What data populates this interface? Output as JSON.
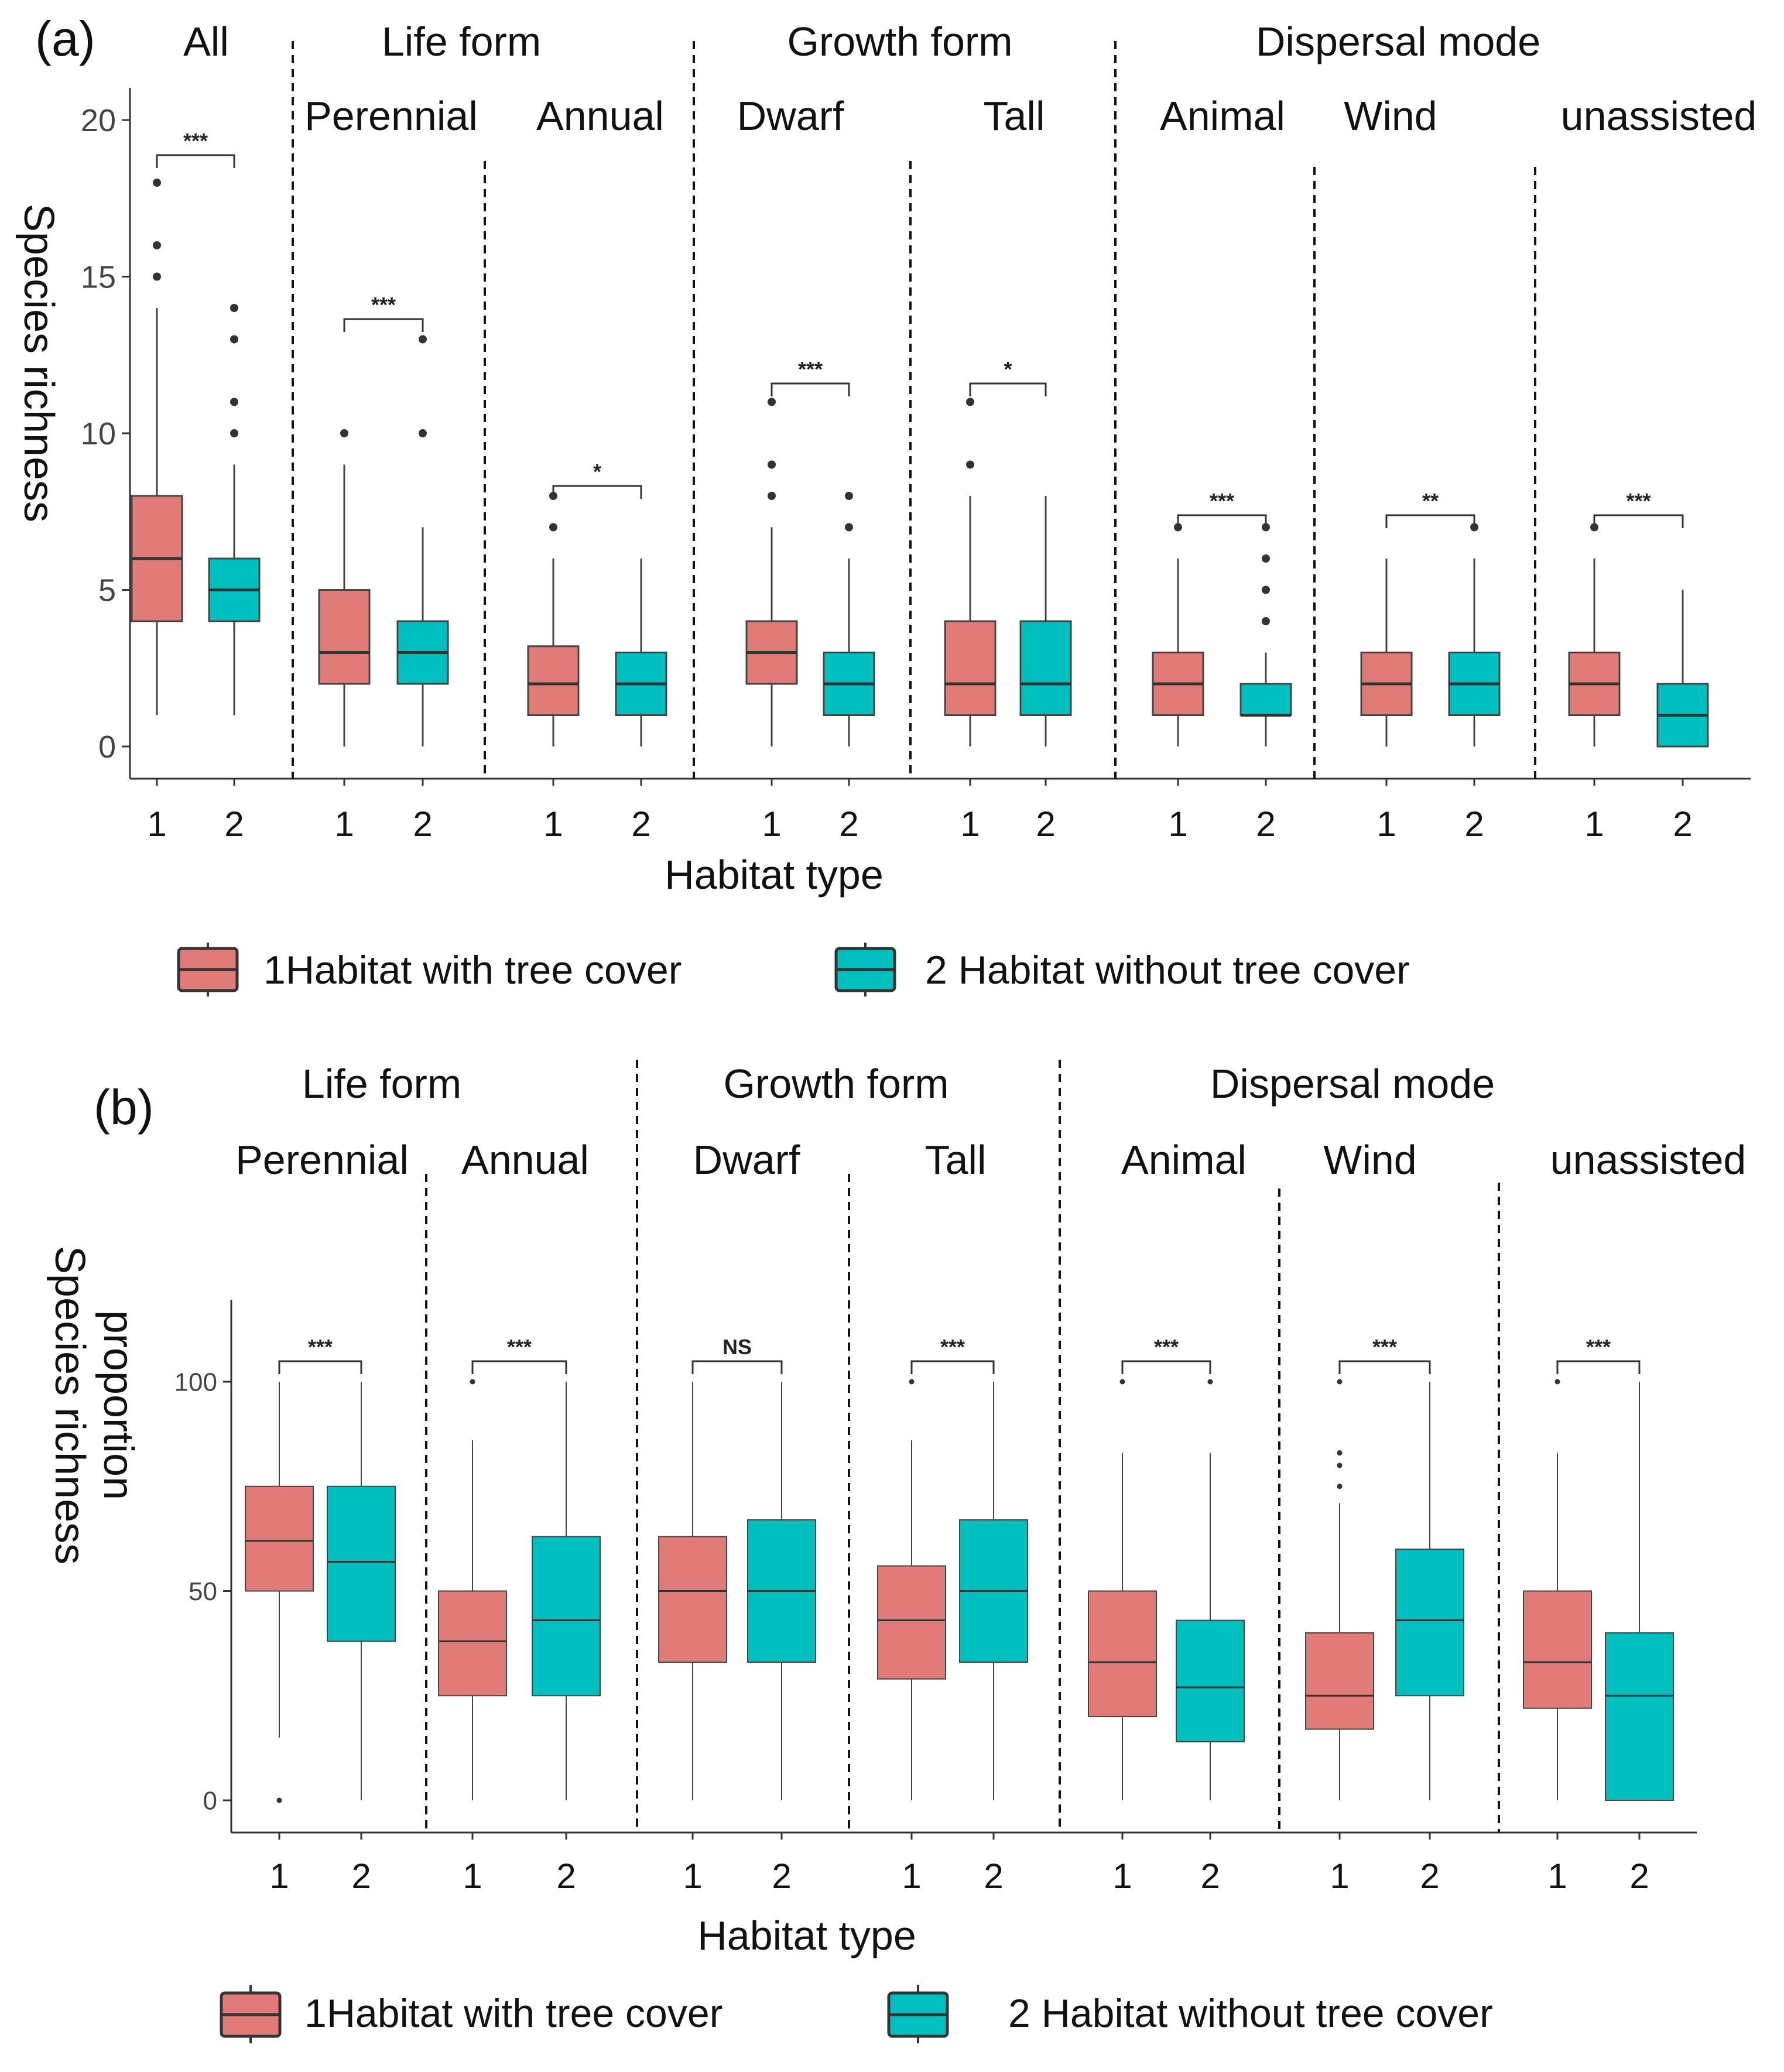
{
  "figure": {
    "legend": {
      "item1": "1Habitat with tree cover",
      "item2": "2 Habitat without tree cover"
    }
  },
  "colors": {
    "habitat1": "#e07b78",
    "habitat2": "#00c0bf",
    "line": "#333333"
  },
  "chart_data": [
    {
      "panel_label": "(a)",
      "type": "boxplot",
      "ylabel": "Species richness",
      "xlabel": "Habitat type",
      "ylim": [
        -1,
        21
      ],
      "yticks": [
        "0",
        "5",
        "10",
        "15",
        "20"
      ],
      "ytick_values": [
        0,
        5,
        10,
        15,
        20
      ],
      "group_headers": [
        {
          "label": "All",
          "groups": [
            0,
            0
          ]
        },
        {
          "label": "Life form",
          "groups": [
            1,
            2
          ]
        },
        {
          "label": "Growth form",
          "groups": [
            3,
            4
          ]
        },
        {
          "label": "Dispersal mode",
          "groups": [
            5,
            7
          ]
        }
      ],
      "groups": [
        {
          "name": "",
          "sig": "***",
          "boxes": [
            {
              "habitat": "1",
              "min": 1,
              "q1": 4,
              "median": 6,
              "q3": 8,
              "max": 14,
              "outliers": [
                15,
                16,
                18
              ]
            },
            {
              "habitat": "2",
              "min": 1,
              "q1": 4,
              "median": 5,
              "q3": 6,
              "max": 9,
              "outliers": [
                10,
                11,
                13,
                14
              ]
            }
          ]
        },
        {
          "name": "Perennial",
          "sig": "***",
          "boxes": [
            {
              "habitat": "1",
              "min": 0,
              "q1": 2,
              "median": 3,
              "q3": 5,
              "max": 9,
              "outliers": [
                10
              ]
            },
            {
              "habitat": "2",
              "min": 0,
              "q1": 2,
              "median": 3,
              "q3": 4,
              "max": 7,
              "outliers": [
                10,
                13
              ]
            }
          ]
        },
        {
          "name": "Annual",
          "sig": "*",
          "boxes": [
            {
              "habitat": "1",
              "min": 0,
              "q1": 1,
              "median": 2,
              "q3": 3.2,
              "max": 6,
              "outliers": [
                7,
                8
              ]
            },
            {
              "habitat": "2",
              "min": 0,
              "q1": 1,
              "median": 2,
              "q3": 3,
              "max": 6,
              "outliers": []
            }
          ]
        },
        {
          "name": "Dwarf",
          "sig": "***",
          "boxes": [
            {
              "habitat": "1",
              "min": 0,
              "q1": 2,
              "median": 3,
              "q3": 4,
              "max": 7,
              "outliers": [
                8,
                9,
                11
              ]
            },
            {
              "habitat": "2",
              "min": 0,
              "q1": 1,
              "median": 2,
              "q3": 3,
              "max": 6,
              "outliers": [
                7,
                8
              ]
            }
          ]
        },
        {
          "name": "Tall",
          "sig": "*",
          "boxes": [
            {
              "habitat": "1",
              "min": 0,
              "q1": 1,
              "median": 2,
              "q3": 4,
              "max": 8,
              "outliers": [
                9,
                11
              ]
            },
            {
              "habitat": "2",
              "min": 0,
              "q1": 1,
              "median": 2,
              "q3": 4,
              "max": 8,
              "outliers": []
            }
          ]
        },
        {
          "name": "Animal",
          "sig": "***",
          "boxes": [
            {
              "habitat": "1",
              "min": 0,
              "q1": 1,
              "median": 2,
              "q3": 3,
              "max": 6,
              "outliers": [
                7
              ]
            },
            {
              "habitat": "2",
              "min": 0,
              "q1": 1,
              "median": 1,
              "q3": 2,
              "max": 3,
              "outliers": [
                4,
                5,
                6,
                7
              ]
            }
          ]
        },
        {
          "name": "Wind",
          "sig": "**",
          "boxes": [
            {
              "habitat": "1",
              "min": 0,
              "q1": 1,
              "median": 2,
              "q3": 3,
              "max": 6,
              "outliers": []
            },
            {
              "habitat": "2",
              "min": 0,
              "q1": 1,
              "median": 2,
              "q3": 3,
              "max": 6,
              "outliers": [
                7
              ]
            }
          ]
        },
        {
          "name": "unassisted",
          "sig": "***",
          "boxes": [
            {
              "habitat": "1",
              "min": 0,
              "q1": 1,
              "median": 2,
              "q3": 3,
              "max": 6,
              "outliers": [
                7
              ]
            },
            {
              "habitat": "2",
              "min": 0,
              "q1": 0,
              "median": 1,
              "q3": 2,
              "max": 5,
              "outliers": []
            }
          ]
        }
      ]
    },
    {
      "panel_label": "(b)",
      "type": "boxplot",
      "ylabel": "Species richness proportion",
      "ylabel_lines": [
        "Species richness",
        "proportion"
      ],
      "xlabel": "Habitat type",
      "ylim": [
        -7,
        120
      ],
      "yticks": [
        "0",
        "50",
        "100"
      ],
      "ytick_values": [
        0,
        50,
        100
      ],
      "group_headers": [
        {
          "label": "Life form",
          "groups": [
            0,
            1
          ]
        },
        {
          "label": "Growth form",
          "groups": [
            2,
            3
          ]
        },
        {
          "label": "Dispersal mode",
          "groups": [
            4,
            6
          ]
        }
      ],
      "groups": [
        {
          "name": "Perennial",
          "sig": "***",
          "boxes": [
            {
              "habitat": "1",
              "min": 15,
              "q1": 50,
              "median": 62,
              "q3": 75,
              "max": 100,
              "outliers": [
                0
              ]
            },
            {
              "habitat": "2",
              "min": 0,
              "q1": 38,
              "median": 57,
              "q3": 75,
              "max": 100,
              "outliers": []
            }
          ]
        },
        {
          "name": "Annual",
          "sig": "***",
          "boxes": [
            {
              "habitat": "1",
              "min": 0,
              "q1": 25,
              "median": 38,
              "q3": 50,
              "max": 86,
              "outliers": [
                100
              ]
            },
            {
              "habitat": "2",
              "min": 0,
              "q1": 25,
              "median": 43,
              "q3": 63,
              "max": 100,
              "outliers": []
            }
          ]
        },
        {
          "name": "Dwarf",
          "sig": "NS",
          "boxes": [
            {
              "habitat": "1",
              "min": 0,
              "q1": 33,
              "median": 50,
              "q3": 63,
              "max": 100,
              "outliers": []
            },
            {
              "habitat": "2",
              "min": 0,
              "q1": 33,
              "median": 50,
              "q3": 67,
              "max": 100,
              "outliers": []
            }
          ]
        },
        {
          "name": "Tall",
          "sig": "***",
          "boxes": [
            {
              "habitat": "1",
              "min": 0,
              "q1": 29,
              "median": 43,
              "q3": 56,
              "max": 86,
              "outliers": [
                100
              ]
            },
            {
              "habitat": "2",
              "min": 0,
              "q1": 33,
              "median": 50,
              "q3": 67,
              "max": 100,
              "outliers": []
            }
          ]
        },
        {
          "name": "Animal",
          "sig": "***",
          "boxes": [
            {
              "habitat": "1",
              "min": 0,
              "q1": 20,
              "median": 33,
              "q3": 50,
              "max": 83,
              "outliers": [
                100
              ]
            },
            {
              "habitat": "2",
              "min": 0,
              "q1": 14,
              "median": 27,
              "q3": 43,
              "max": 83,
              "outliers": [
                100
              ]
            }
          ]
        },
        {
          "name": "Wind",
          "sig": "***",
          "boxes": [
            {
              "habitat": "1",
              "min": 0,
              "q1": 17,
              "median": 25,
              "q3": 40,
              "max": 71,
              "outliers": [
                75,
                80,
                83,
                100
              ]
            },
            {
              "habitat": "2",
              "min": 0,
              "q1": 25,
              "median": 43,
              "q3": 60,
              "max": 100,
              "outliers": []
            }
          ]
        },
        {
          "name": "unassisted",
          "sig": "***",
          "boxes": [
            {
              "habitat": "1",
              "min": 0,
              "q1": 22,
              "median": 33,
              "q3": 50,
              "max": 83,
              "outliers": [
                100
              ]
            },
            {
              "habitat": "2",
              "min": 0,
              "q1": 0,
              "median": 25,
              "q3": 40,
              "max": 100,
              "outliers": []
            }
          ]
        }
      ]
    }
  ]
}
